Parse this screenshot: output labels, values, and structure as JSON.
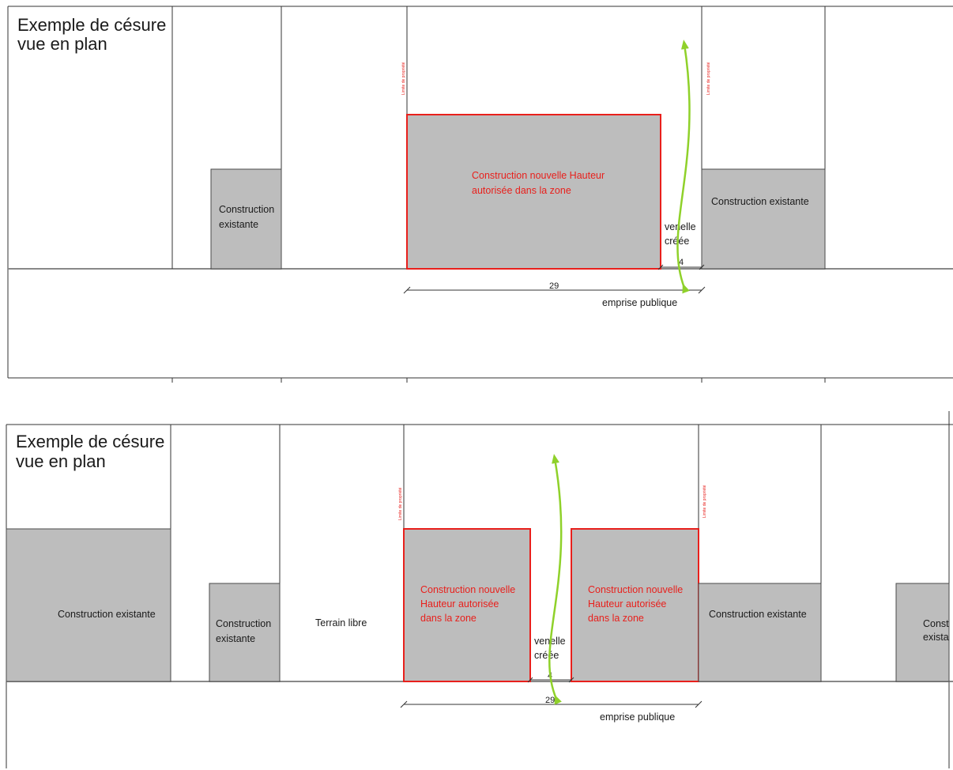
{
  "panels": [
    {
      "title": [
        "Exemple de césure",
        "vue en plan"
      ],
      "existing_left": [
        "Construction",
        "existante"
      ],
      "new_building": [
        "Construction nouvelle Hauteur",
        "autorisée dans la zone"
      ],
      "existing_right": "Construction existante",
      "lane": [
        "venelle",
        "créée"
      ],
      "lane_width": "4",
      "total_width": "29",
      "public_space": "emprise publique",
      "property_limit": "Limite de propriété"
    },
    {
      "title": [
        "Exemple de césure",
        "vue en plan"
      ],
      "existing_far_left": "Construction existante",
      "existing_left": [
        "Construction",
        "existante"
      ],
      "vacant_lot": "Terrain libre",
      "new_building_a": [
        "Construction nouvelle",
        "Hauteur autorisée",
        "dans la zone"
      ],
      "new_building_b": [
        "Construction nouvelle",
        "Hauteur autorisée",
        "dans la zone"
      ],
      "existing_right": "Construction existante",
      "existing_far_right": [
        "Const",
        "exista"
      ],
      "lane": [
        "venelle",
        "créée"
      ],
      "lane_width": "4",
      "total_width": "29",
      "public_space": "emprise publique",
      "property_limit": "Limite de propriété"
    }
  ],
  "colors": {
    "building_fill": "#bdbdbd",
    "new_outline": "#e8201c",
    "arrow": "#8fd12a"
  }
}
